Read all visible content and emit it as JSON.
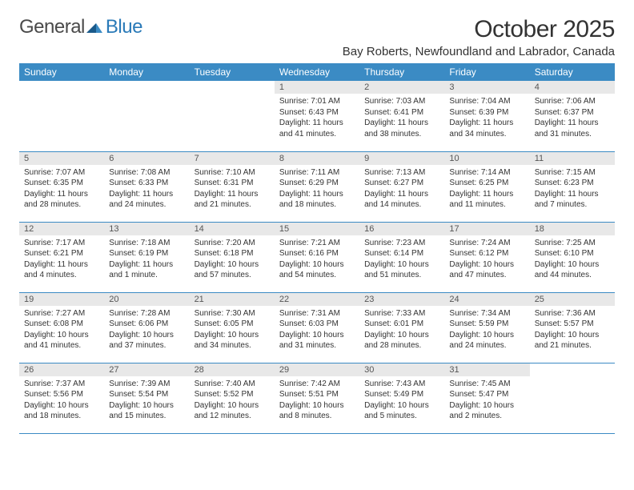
{
  "logo": {
    "text1": "General",
    "text2": "Blue"
  },
  "title": "October 2025",
  "location": "Bay Roberts, Newfoundland and Labrador, Canada",
  "colors": {
    "header_bg": "#3b8bc4",
    "header_text": "#ffffff",
    "daynum_bg": "#e8e8e8",
    "daynum_text": "#555555",
    "body_text": "#333333",
    "row_border": "#3b8bc4",
    "logo_gray": "#4a4a4a",
    "logo_blue": "#2a7ab8"
  },
  "weekdays": [
    "Sunday",
    "Monday",
    "Tuesday",
    "Wednesday",
    "Thursday",
    "Friday",
    "Saturday"
  ],
  "weeks": [
    [
      null,
      null,
      null,
      {
        "n": "1",
        "sr": "Sunrise: 7:01 AM",
        "ss": "Sunset: 6:43 PM",
        "dl": "Daylight: 11 hours and 41 minutes."
      },
      {
        "n": "2",
        "sr": "Sunrise: 7:03 AM",
        "ss": "Sunset: 6:41 PM",
        "dl": "Daylight: 11 hours and 38 minutes."
      },
      {
        "n": "3",
        "sr": "Sunrise: 7:04 AM",
        "ss": "Sunset: 6:39 PM",
        "dl": "Daylight: 11 hours and 34 minutes."
      },
      {
        "n": "4",
        "sr": "Sunrise: 7:06 AM",
        "ss": "Sunset: 6:37 PM",
        "dl": "Daylight: 11 hours and 31 minutes."
      }
    ],
    [
      {
        "n": "5",
        "sr": "Sunrise: 7:07 AM",
        "ss": "Sunset: 6:35 PM",
        "dl": "Daylight: 11 hours and 28 minutes."
      },
      {
        "n": "6",
        "sr": "Sunrise: 7:08 AM",
        "ss": "Sunset: 6:33 PM",
        "dl": "Daylight: 11 hours and 24 minutes."
      },
      {
        "n": "7",
        "sr": "Sunrise: 7:10 AM",
        "ss": "Sunset: 6:31 PM",
        "dl": "Daylight: 11 hours and 21 minutes."
      },
      {
        "n": "8",
        "sr": "Sunrise: 7:11 AM",
        "ss": "Sunset: 6:29 PM",
        "dl": "Daylight: 11 hours and 18 minutes."
      },
      {
        "n": "9",
        "sr": "Sunrise: 7:13 AM",
        "ss": "Sunset: 6:27 PM",
        "dl": "Daylight: 11 hours and 14 minutes."
      },
      {
        "n": "10",
        "sr": "Sunrise: 7:14 AM",
        "ss": "Sunset: 6:25 PM",
        "dl": "Daylight: 11 hours and 11 minutes."
      },
      {
        "n": "11",
        "sr": "Sunrise: 7:15 AM",
        "ss": "Sunset: 6:23 PM",
        "dl": "Daylight: 11 hours and 7 minutes."
      }
    ],
    [
      {
        "n": "12",
        "sr": "Sunrise: 7:17 AM",
        "ss": "Sunset: 6:21 PM",
        "dl": "Daylight: 11 hours and 4 minutes."
      },
      {
        "n": "13",
        "sr": "Sunrise: 7:18 AM",
        "ss": "Sunset: 6:19 PM",
        "dl": "Daylight: 11 hours and 1 minute."
      },
      {
        "n": "14",
        "sr": "Sunrise: 7:20 AM",
        "ss": "Sunset: 6:18 PM",
        "dl": "Daylight: 10 hours and 57 minutes."
      },
      {
        "n": "15",
        "sr": "Sunrise: 7:21 AM",
        "ss": "Sunset: 6:16 PM",
        "dl": "Daylight: 10 hours and 54 minutes."
      },
      {
        "n": "16",
        "sr": "Sunrise: 7:23 AM",
        "ss": "Sunset: 6:14 PM",
        "dl": "Daylight: 10 hours and 51 minutes."
      },
      {
        "n": "17",
        "sr": "Sunrise: 7:24 AM",
        "ss": "Sunset: 6:12 PM",
        "dl": "Daylight: 10 hours and 47 minutes."
      },
      {
        "n": "18",
        "sr": "Sunrise: 7:25 AM",
        "ss": "Sunset: 6:10 PM",
        "dl": "Daylight: 10 hours and 44 minutes."
      }
    ],
    [
      {
        "n": "19",
        "sr": "Sunrise: 7:27 AM",
        "ss": "Sunset: 6:08 PM",
        "dl": "Daylight: 10 hours and 41 minutes."
      },
      {
        "n": "20",
        "sr": "Sunrise: 7:28 AM",
        "ss": "Sunset: 6:06 PM",
        "dl": "Daylight: 10 hours and 37 minutes."
      },
      {
        "n": "21",
        "sr": "Sunrise: 7:30 AM",
        "ss": "Sunset: 6:05 PM",
        "dl": "Daylight: 10 hours and 34 minutes."
      },
      {
        "n": "22",
        "sr": "Sunrise: 7:31 AM",
        "ss": "Sunset: 6:03 PM",
        "dl": "Daylight: 10 hours and 31 minutes."
      },
      {
        "n": "23",
        "sr": "Sunrise: 7:33 AM",
        "ss": "Sunset: 6:01 PM",
        "dl": "Daylight: 10 hours and 28 minutes."
      },
      {
        "n": "24",
        "sr": "Sunrise: 7:34 AM",
        "ss": "Sunset: 5:59 PM",
        "dl": "Daylight: 10 hours and 24 minutes."
      },
      {
        "n": "25",
        "sr": "Sunrise: 7:36 AM",
        "ss": "Sunset: 5:57 PM",
        "dl": "Daylight: 10 hours and 21 minutes."
      }
    ],
    [
      {
        "n": "26",
        "sr": "Sunrise: 7:37 AM",
        "ss": "Sunset: 5:56 PM",
        "dl": "Daylight: 10 hours and 18 minutes."
      },
      {
        "n": "27",
        "sr": "Sunrise: 7:39 AM",
        "ss": "Sunset: 5:54 PM",
        "dl": "Daylight: 10 hours and 15 minutes."
      },
      {
        "n": "28",
        "sr": "Sunrise: 7:40 AM",
        "ss": "Sunset: 5:52 PM",
        "dl": "Daylight: 10 hours and 12 minutes."
      },
      {
        "n": "29",
        "sr": "Sunrise: 7:42 AM",
        "ss": "Sunset: 5:51 PM",
        "dl": "Daylight: 10 hours and 8 minutes."
      },
      {
        "n": "30",
        "sr": "Sunrise: 7:43 AM",
        "ss": "Sunset: 5:49 PM",
        "dl": "Daylight: 10 hours and 5 minutes."
      },
      {
        "n": "31",
        "sr": "Sunrise: 7:45 AM",
        "ss": "Sunset: 5:47 PM",
        "dl": "Daylight: 10 hours and 2 minutes."
      },
      null
    ]
  ]
}
